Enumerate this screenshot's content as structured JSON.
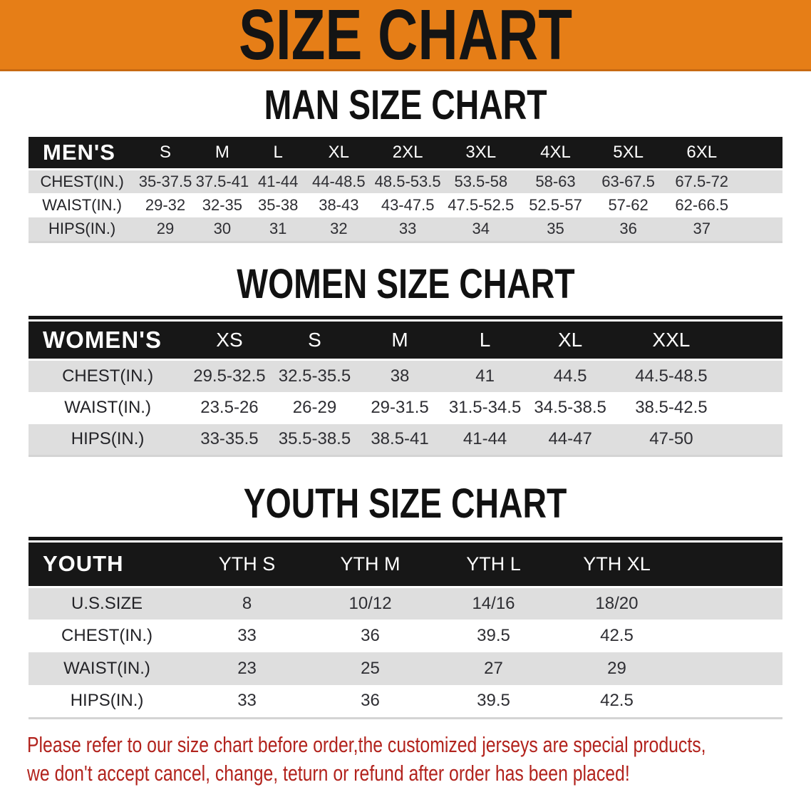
{
  "banner": {
    "title": "SIZE CHART"
  },
  "colors": {
    "banner_bg": "#E67E17",
    "banner_edge": "#C86A12",
    "banner_text": "#141414",
    "header_bg": "#171717",
    "header_text": "#FFFFFF",
    "row_alt_bg": "#DEDEDE",
    "row_bg": "#FFFFFF",
    "cell_text": "#2E2E33",
    "title_text": "#111111",
    "footnote_text": "#B2231D"
  },
  "sections": [
    {
      "title": "MAN SIZE CHART",
      "table": {
        "corner": "MEN'S",
        "sizes": [
          "S",
          "M",
          "L",
          "XL",
          "2XL",
          "3XL",
          "4XL",
          "5XL",
          "6XL"
        ],
        "rows": [
          {
            "label": "CHEST(IN.)",
            "values": [
              "35-37.5",
              "37.5-41",
              "41-44",
              "44-48.5",
              "48.5-53.5",
              "53.5-58",
              "58-63",
              "63-67.5",
              "67.5-72"
            ]
          },
          {
            "label": "WAIST(IN.)",
            "values": [
              "29-32",
              "32-35",
              "35-38",
              "38-43",
              "43-47.5",
              "47.5-52.5",
              "52.5-57",
              "57-62",
              "62-66.5"
            ]
          },
          {
            "label": "HIPS(IN.)",
            "values": [
              "29",
              "30",
              "31",
              "32",
              "33",
              "34",
              "35",
              "36",
              "37"
            ]
          }
        ]
      }
    },
    {
      "title": "WOMEN SIZE CHART",
      "table": {
        "corner": "WOMEN'S",
        "sizes": [
          "XS",
          "S",
          "M",
          "L",
          "XL",
          "XXL"
        ],
        "rows": [
          {
            "label": "CHEST(IN.)",
            "values": [
              "29.5-32.5",
              "32.5-35.5",
              "38",
              "41",
              "44.5",
              "44.5-48.5"
            ]
          },
          {
            "label": "WAIST(IN.)",
            "values": [
              "23.5-26",
              "26-29",
              "29-31.5",
              "31.5-34.5",
              "34.5-38.5",
              "38.5-42.5"
            ]
          },
          {
            "label": "HIPS(IN.)",
            "values": [
              "33-35.5",
              "35.5-38.5",
              "38.5-41",
              "41-44",
              "44-47",
              "47-50"
            ]
          }
        ]
      }
    },
    {
      "title": "YOUTH SIZE CHART",
      "table": {
        "corner": "YOUTH",
        "sizes": [
          "YTH S",
          "YTH M",
          "YTH L",
          "YTH XL"
        ],
        "rows": [
          {
            "label": "U.S.SIZE",
            "values": [
              "8",
              "10/12",
              "14/16",
              "18/20"
            ]
          },
          {
            "label": "CHEST(IN.)",
            "values": [
              "33",
              "36",
              "39.5",
              "42.5"
            ]
          },
          {
            "label": "WAIST(IN.)",
            "values": [
              "23",
              "25",
              "27",
              "29"
            ]
          },
          {
            "label": "HIPS(IN.)",
            "values": [
              "33",
              "36",
              "39.5",
              "42.5"
            ]
          }
        ]
      }
    }
  ],
  "footnote": {
    "lines": [
      "Please refer to our size chart before order,the customized jerseys are special products,",
      "we don't accept cancel, change, teturn or refund after order has been placed!"
    ]
  }
}
